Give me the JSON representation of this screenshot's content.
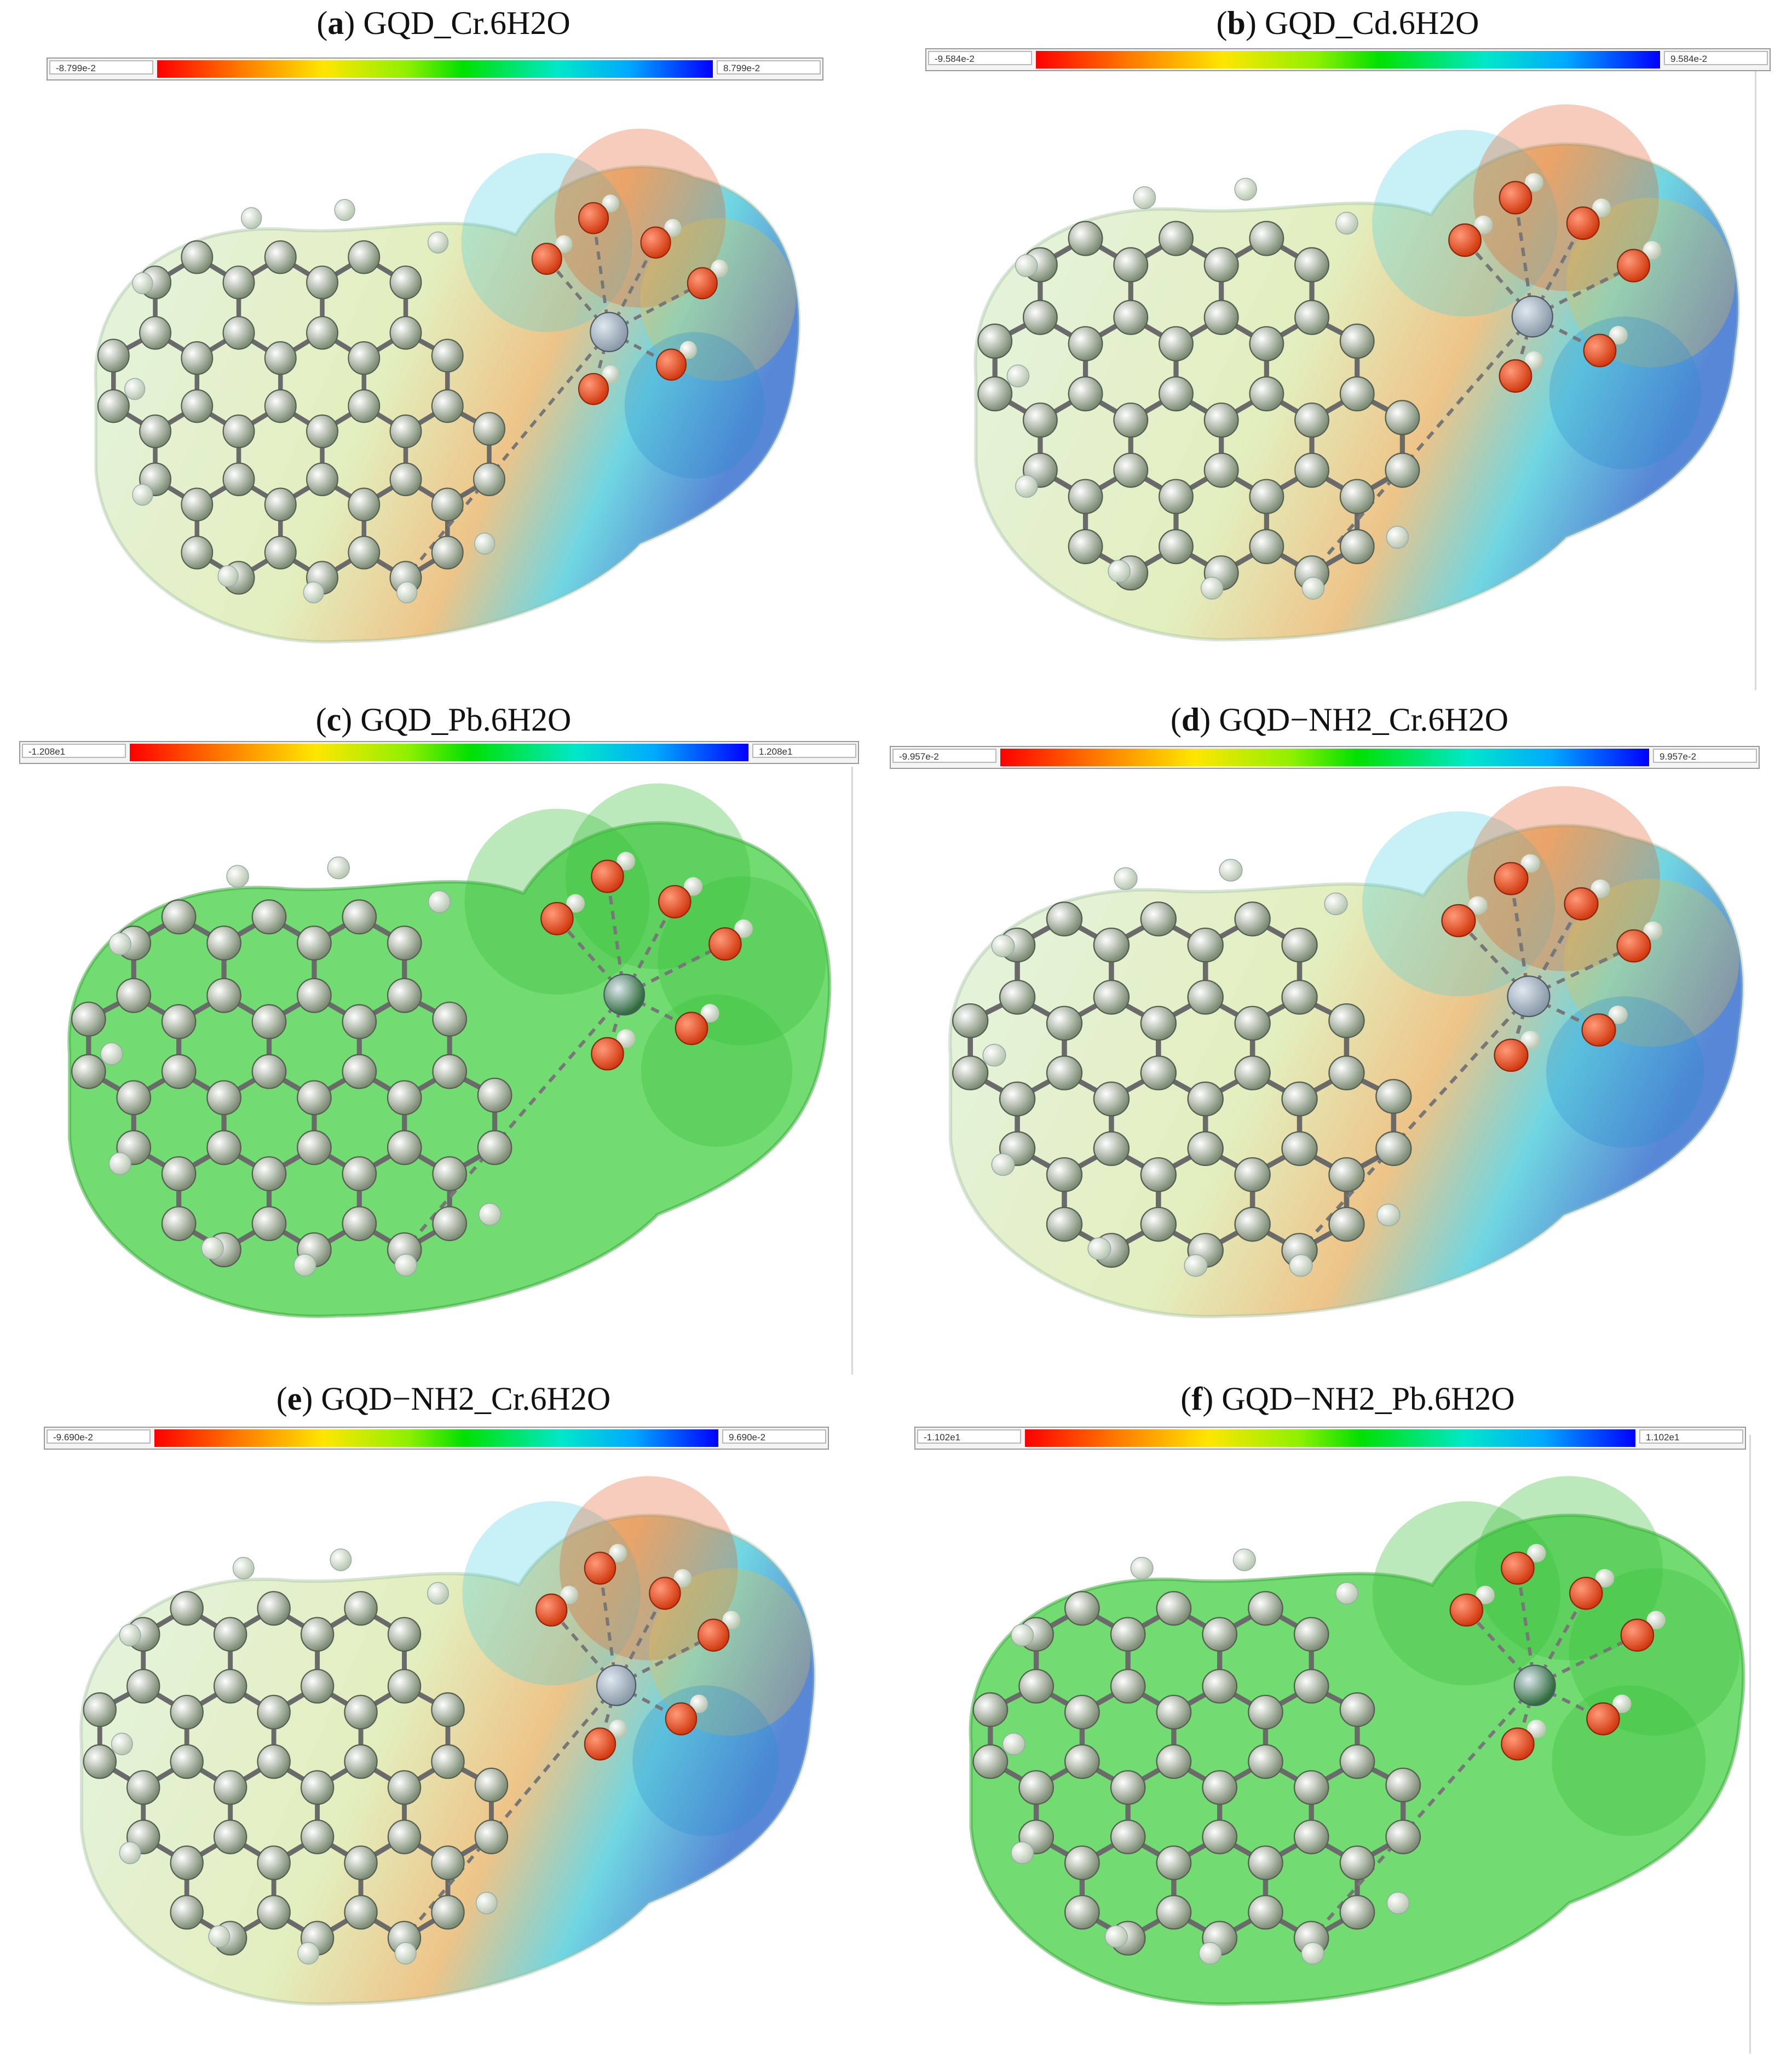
{
  "panels": [
    {
      "tag": "a",
      "title": "GQD_Cr.6H2O",
      "min": "-8.799e-2",
      "max": "8.799e-2",
      "scene": "esp"
    },
    {
      "tag": "b",
      "title": "GQD_Cd.6H2O",
      "min": "-9.584e-2",
      "max": "9.584e-2",
      "scene": "esp"
    },
    {
      "tag": "c",
      "title": "GQD_Pb.6H2O",
      "min": "-1.208e1",
      "max": "1.208e1",
      "scene": "green"
    },
    {
      "tag": "d",
      "title": "GQD−NH2_Cr.6H2O",
      "min": "-9.957e-2",
      "max": "9.957e-2",
      "scene": "esp"
    },
    {
      "tag": "e",
      "title": "GQD−NH2_Cr.6H2O",
      "min": "-9.690e-2",
      "max": "9.690e-2",
      "scene": "esp"
    },
    {
      "tag": "f",
      "title": "GQD−NH2_Pb.6H2O",
      "min": "-1.102e1",
      "max": "1.102e1",
      "scene": "green"
    }
  ],
  "colors": {
    "carbon": "#7d8c74",
    "hydrogen": "#e9f0e4",
    "oxygen": "#d23a10",
    "metal_cr": "#8a9aa8",
    "metal_pb": "#2f6b3c",
    "nitrogen": "#1a3fd0",
    "surface_green": "#4fd24f"
  }
}
